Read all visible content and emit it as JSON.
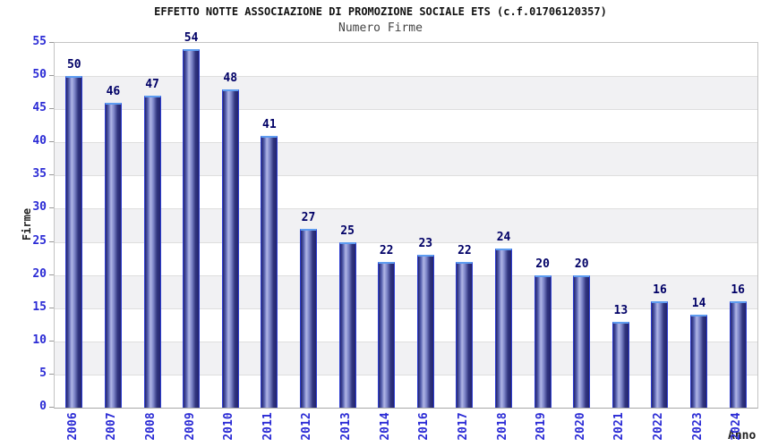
{
  "chart_data": {
    "type": "bar",
    "title": "EFFETTO NOTTE ASSOCIAZIONE DI PROMOZIONE SOCIALE ETS (c.f.01706120357)",
    "subtitle": "Numero Firme",
    "xlabel": "Anno",
    "ylabel": "Firme",
    "categories": [
      "2006",
      "2007",
      "2008",
      "2009",
      "2010",
      "2011",
      "2012",
      "2013",
      "2014",
      "2016",
      "2017",
      "2018",
      "2019",
      "2020",
      "2021",
      "2022",
      "2023",
      "2024"
    ],
    "values": [
      50,
      46,
      47,
      54,
      48,
      41,
      27,
      25,
      22,
      23,
      22,
      24,
      20,
      20,
      13,
      16,
      14,
      16
    ],
    "ylim": [
      0,
      55
    ],
    "ytick_step": 5,
    "grid": "horizontal-bands",
    "legend": "none",
    "colors": {
      "bar_dark": "#23246e",
      "bar_mid": "#555fae",
      "bar_light": "#b0b6e6",
      "bar_edge": "#2e3ed0",
      "bar_cap": "#5e9cf0",
      "tick_label": "#2b2bd5",
      "value_label": "#000066",
      "band": "#f1f1f3",
      "gridline": "#dedede",
      "tick_mark": "#999999",
      "title": "#111111",
      "subtitle": "#444444",
      "axis_title": "#222222"
    }
  }
}
